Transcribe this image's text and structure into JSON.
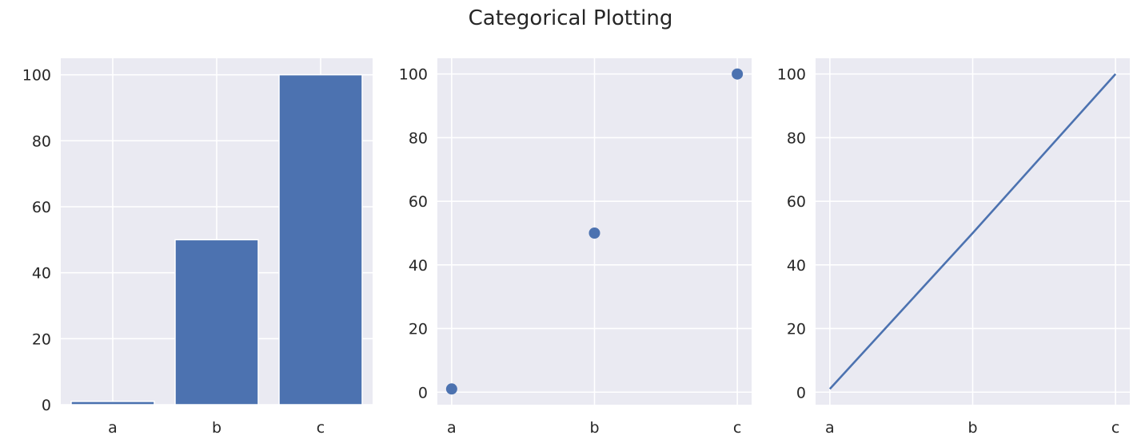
{
  "figure": {
    "title": "Categorical Plotting"
  },
  "style": {
    "axes_facecolor": "#EAEAF2",
    "grid_color": "#FFFFFF",
    "series_color": "#4C72B0",
    "text_color": "#262626"
  },
  "chart_data": [
    {
      "type": "bar",
      "categories": [
        "a",
        "b",
        "c"
      ],
      "values": [
        1,
        50,
        100
      ],
      "ylim": [
        0,
        105
      ],
      "yticks": [
        0,
        20,
        40,
        60,
        80,
        100
      ],
      "grid": true
    },
    {
      "type": "scatter",
      "categories": [
        "a",
        "b",
        "c"
      ],
      "values": [
        1,
        50,
        100
      ],
      "ylim": [
        -3.95,
        104.95
      ],
      "yticks": [
        0,
        20,
        40,
        60,
        80,
        100
      ],
      "grid": true
    },
    {
      "type": "line",
      "categories": [
        "a",
        "b",
        "c"
      ],
      "values": [
        1,
        50,
        100
      ],
      "ylim": [
        -3.95,
        104.95
      ],
      "yticks": [
        0,
        20,
        40,
        60,
        80,
        100
      ],
      "grid": true
    }
  ]
}
